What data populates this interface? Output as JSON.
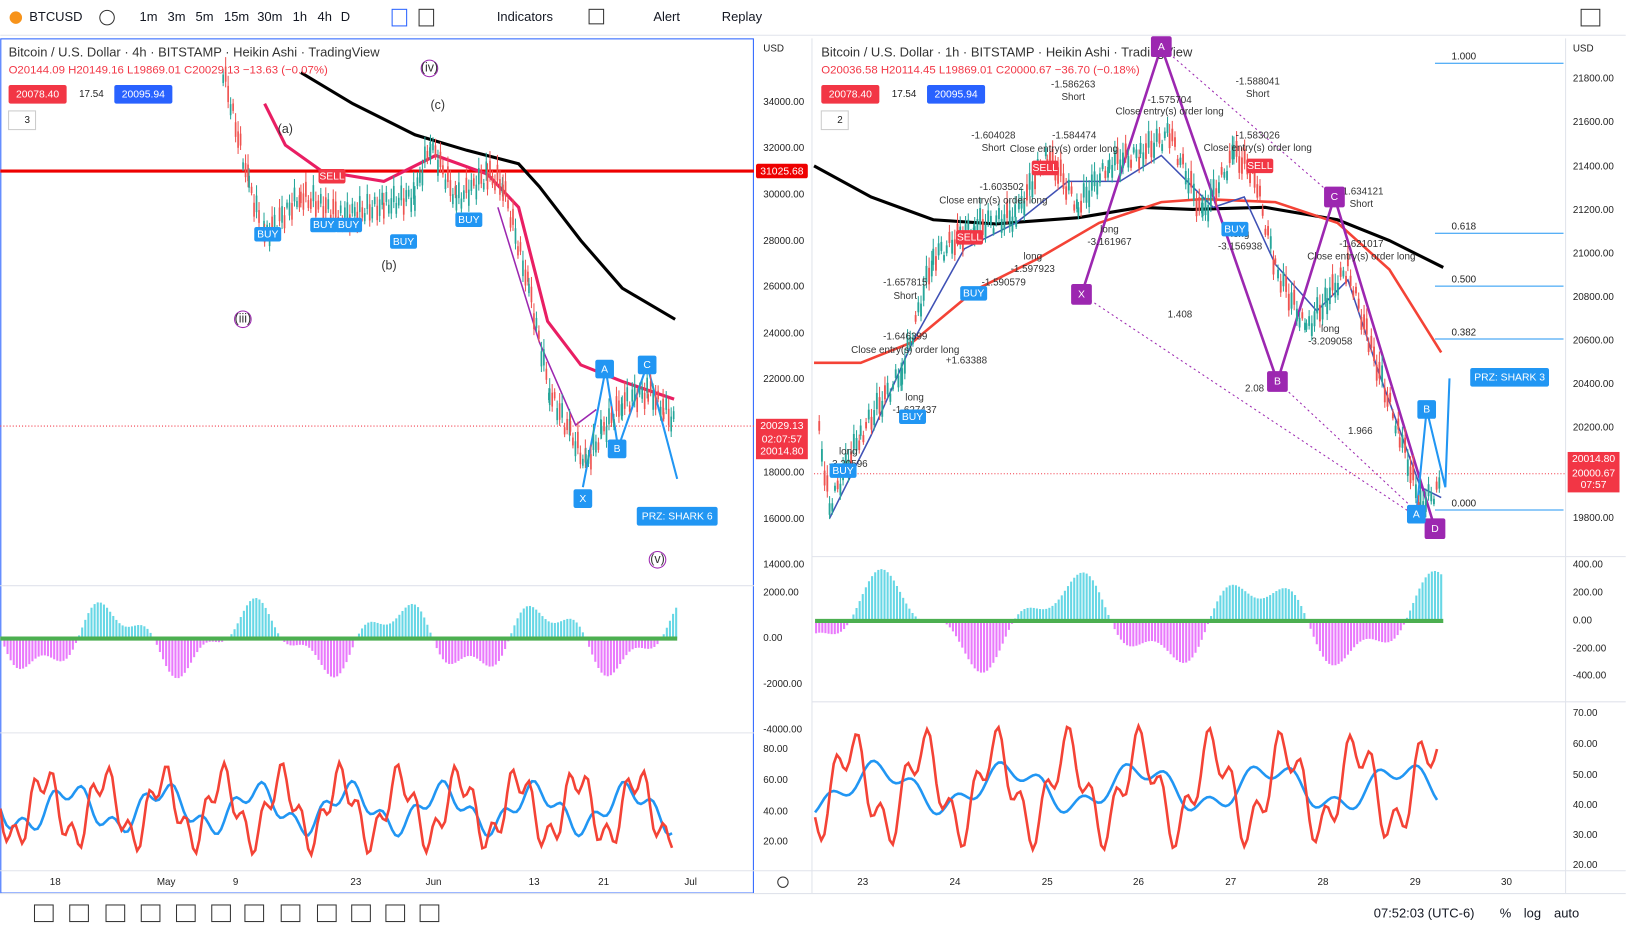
{
  "toolbar": {
    "symbol": "BTCUSD",
    "intervals": [
      "1m",
      "3m",
      "5m",
      "15m",
      "30m",
      "1h",
      "4h",
      "D"
    ],
    "indicators": "Indicators",
    "alert": "Alert",
    "replay": "Replay"
  },
  "left_chart": {
    "title": "Bitcoin / U.S. Dollar · 4h · BITSTAMP · Heikin Ashi · TradingView",
    "ohlc": "O20144.09 H20149.16 L19869.01 C20029.13 −13.63 (−0.07%)",
    "bid": "20078.40",
    "spread": "17.54",
    "ask": "20095.94",
    "layers": "3",
    "currency": "USD",
    "price_ticks": [
      "34000.00",
      "32000.00",
      "30000.00",
      "28000.00",
      "26000.00",
      "24000.00",
      "22000.00",
      "18000.00",
      "16000.00",
      "14000.00"
    ],
    "price_labels": [
      "31025.68",
      "20029.13",
      "02:07:57",
      "20014.80"
    ],
    "osc_ticks": [
      "2000.00",
      "0.00",
      "-2000.00",
      "-4000.00"
    ],
    "rsi_ticks": [
      "80.00",
      "60.00",
      "40.00",
      "20.00"
    ],
    "time_ticks": [
      "18",
      "May",
      "9",
      "23",
      "Jun",
      "13",
      "21",
      "Jul"
    ],
    "annotations": [
      "(a)",
      "(b)",
      "(c)",
      "(iii)",
      "(iv)",
      "(v)"
    ],
    "pattern_points": [
      "X",
      "A",
      "B",
      "C"
    ],
    "signals": [
      "SELL",
      "BUY",
      "BUY",
      "BUY",
      "BUY",
      "BUY"
    ],
    "prz": "PRZ: SHARK 6"
  },
  "right_chart": {
    "title": "Bitcoin / U.S. Dollar · 1h · BITSTAMP · Heikin Ashi · TradingView",
    "ohlc": "O20036.58 H20114.45 L19869.01 C20000.67 −36.70 (−0.18%)",
    "bid": "20078.40",
    "spread": "17.54",
    "ask": "20095.94",
    "layers": "2",
    "currency": "USD",
    "price_ticks": [
      "21800.00",
      "21600.00",
      "21400.00",
      "21200.00",
      "21000.00",
      "20800.00",
      "20600.00",
      "20400.00",
      "20200.00",
      "19800.00"
    ],
    "price_labels": [
      "20014.80",
      "20000.67",
      "07:57"
    ],
    "osc_ticks": [
      "400.00",
      "200.00",
      "0.00",
      "-200.00",
      "-400.00"
    ],
    "rsi_ticks": [
      "70.00",
      "60.00",
      "50.00",
      "40.00",
      "30.00",
      "20.00"
    ],
    "time_ticks": [
      "23",
      "24",
      "25",
      "26",
      "27",
      "28",
      "29",
      "30"
    ],
    "fib_levels": [
      "1.000",
      "0.618",
      "0.500",
      "0.382",
      "0.000"
    ],
    "pattern_points": [
      "X",
      "A",
      "B",
      "C",
      "D"
    ],
    "shark_points": [
      "A",
      "B"
    ],
    "ratios": [
      "1.408",
      "2.08",
      "1.966"
    ],
    "signals": [
      "SELL",
      "SELL",
      "BUY",
      "BUY",
      "BUY",
      "BUY",
      "SELL"
    ],
    "prz": "PRZ: SHARK 3",
    "annotations": [
      "-1.586263",
      "Short",
      "-1.588041",
      "Short",
      "-1.575704",
      "Close entry(s) order long",
      "-1.604028",
      "Short",
      "-1.584474",
      "Close entry(s) order long",
      "-1.583026",
      "Close entry(s) order long",
      "-1.603502",
      "Close entry(s) order long",
      "-1.634121",
      "Short",
      "long",
      "-3.161967",
      "long",
      "-3.156938",
      "-1.621017",
      "Close entry(s) order long",
      "long",
      "-1.597923",
      "-1.590579",
      "-1.657815",
      "Short",
      "-1.646399",
      "Close entry(s) order long",
      "+1.63388",
      "long",
      "-3.209058",
      "long",
      "-1.627437",
      "long",
      "-3.29596"
    ]
  },
  "footer": {
    "clock": "07:52:03 (UTC-6)",
    "percent": "%",
    "log": "log",
    "auto": "auto"
  }
}
